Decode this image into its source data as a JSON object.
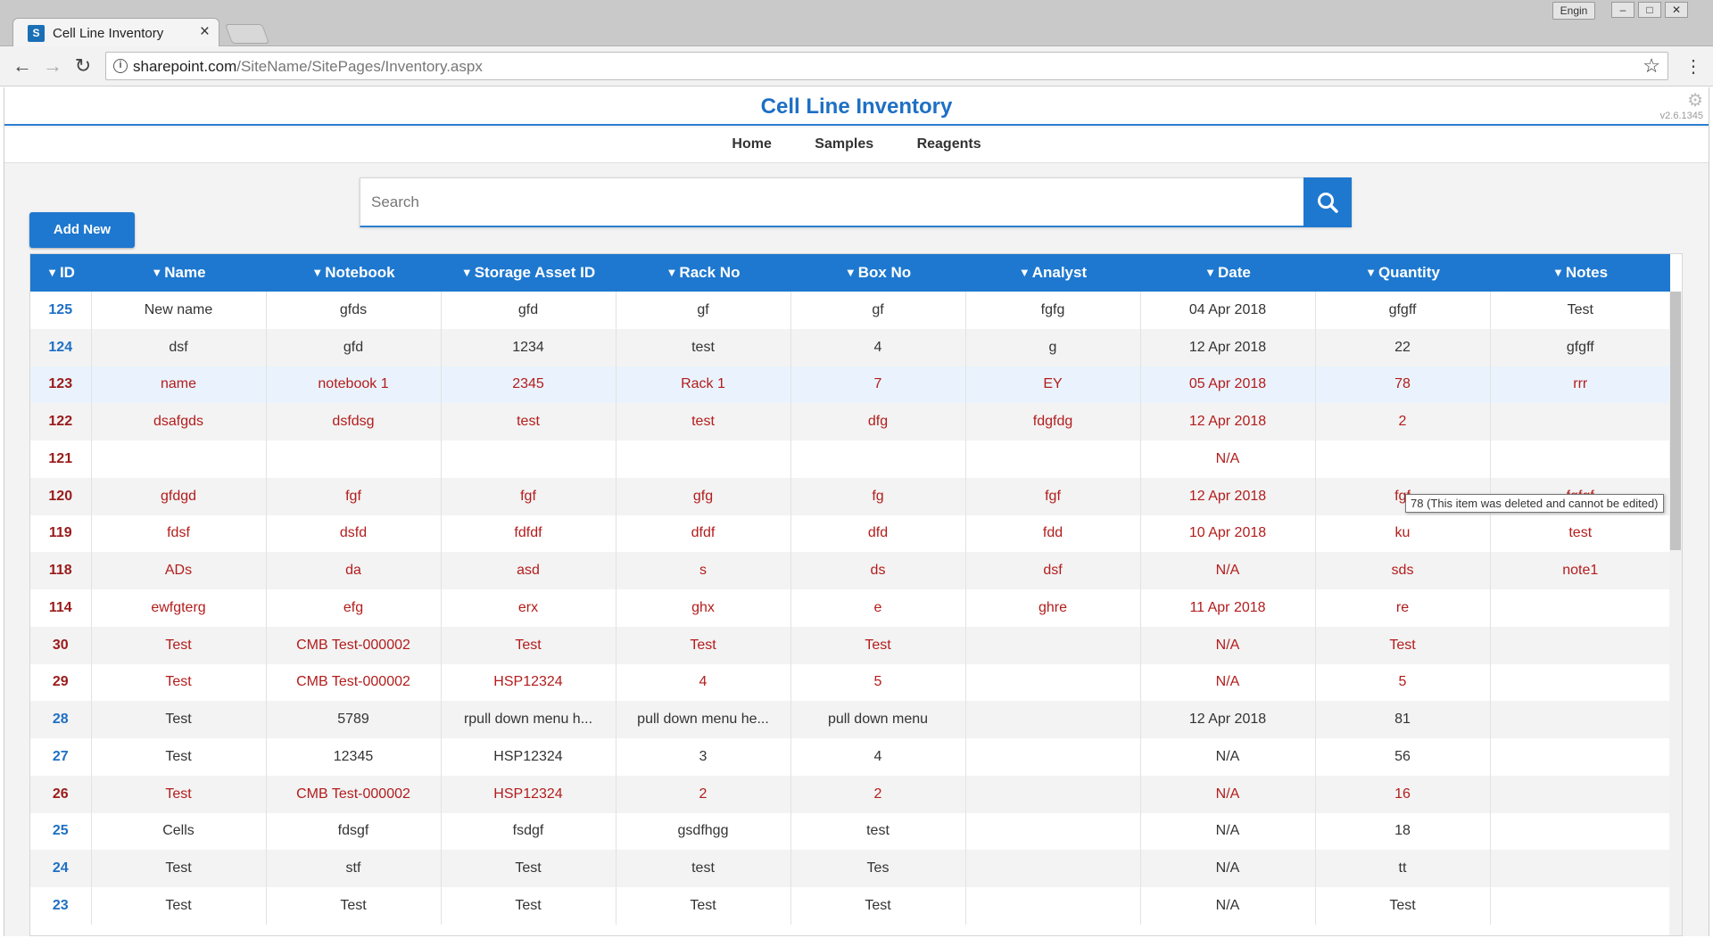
{
  "browser": {
    "tab_title": "Cell Line Inventory",
    "tab_close": "×",
    "user_badge": "Engin",
    "url_domain": "sharepoint.com",
    "url_path": "/SiteName/SitePages/Inventory.aspx"
  },
  "app": {
    "title": "Cell Line Inventory",
    "version": "v2.6.1345",
    "nav": [
      "Home",
      "Samples",
      "Reagents"
    ],
    "search_placeholder": "Search",
    "add_button": "Add New"
  },
  "table": {
    "columns": [
      "ID",
      "Name",
      "Notebook",
      "Storage Asset ID",
      "Rack No",
      "Box No",
      "Analyst",
      "Date",
      "Quantity",
      "Notes"
    ],
    "rows": [
      {
        "id": "125",
        "deleted": false,
        "cells": [
          "New name",
          "gfds",
          "gfd",
          "gf",
          "gf",
          "fgfg",
          "04 Apr 2018",
          "gfgff",
          "Test"
        ]
      },
      {
        "id": "124",
        "deleted": false,
        "cells": [
          "dsf",
          "gfd",
          "1234",
          "test",
          "4",
          "g",
          "12 Apr 2018",
          "22",
          "gfgff"
        ]
      },
      {
        "id": "123",
        "deleted": true,
        "cells": [
          "name",
          "notebook 1",
          "2345",
          "Rack 1",
          "7",
          "EY",
          "05 Apr 2018",
          "78",
          "rrr"
        ]
      },
      {
        "id": "122",
        "deleted": true,
        "cells": [
          "dsafgds",
          "dsfdsg",
          "test",
          "test",
          "dfg",
          "fdgfdg",
          "12 Apr 2018",
          "2",
          ""
        ]
      },
      {
        "id": "121",
        "deleted": true,
        "cells": [
          "",
          "",
          "",
          "",
          "",
          "",
          "N/A",
          "",
          ""
        ]
      },
      {
        "id": "120",
        "deleted": true,
        "cells": [
          "gfdgd",
          "fgf",
          "fgf",
          "gfg",
          "fg",
          "fgf",
          "12 Apr 2018",
          "fgf",
          "fgfgf"
        ]
      },
      {
        "id": "119",
        "deleted": true,
        "cells": [
          "fdsf",
          "dsfd",
          "fdfdf",
          "dfdf",
          "dfd",
          "fdd",
          "10 Apr 2018",
          "ku",
          "test"
        ]
      },
      {
        "id": "118",
        "deleted": true,
        "cells": [
          "ADs",
          "da",
          "asd",
          "s",
          "ds",
          "dsf",
          "N/A",
          "sds",
          "note1"
        ]
      },
      {
        "id": "114",
        "deleted": true,
        "cells": [
          "ewfgterg",
          "efg",
          "erx",
          "ghx",
          "e",
          "ghre",
          "11 Apr 2018",
          "re",
          ""
        ]
      },
      {
        "id": "30",
        "deleted": true,
        "cells": [
          "Test",
          "CMB Test-000002",
          "Test",
          "Test",
          "Test",
          "",
          "N/A",
          "Test",
          ""
        ]
      },
      {
        "id": "29",
        "deleted": true,
        "cells": [
          "Test",
          "CMB Test-000002",
          "HSP12324",
          "4",
          "5",
          "",
          "N/A",
          "5",
          ""
        ]
      },
      {
        "id": "28",
        "deleted": false,
        "cells": [
          "Test",
          "5789",
          "rpull down menu h...",
          "pull down menu he...",
          "pull down menu",
          "",
          "12 Apr 2018",
          "81",
          ""
        ]
      },
      {
        "id": "27",
        "deleted": false,
        "cells": [
          "Test",
          "12345",
          "HSP12324",
          "3",
          "4",
          "",
          "N/A",
          "56",
          ""
        ]
      },
      {
        "id": "26",
        "deleted": true,
        "cells": [
          "Test",
          "CMB Test-000002",
          "HSP12324",
          "2",
          "2",
          "",
          "N/A",
          "16",
          ""
        ]
      },
      {
        "id": "25",
        "deleted": false,
        "cells": [
          "Cells",
          "fdsgf",
          "fsdgf",
          "gsdfhgg",
          "test",
          "",
          "N/A",
          "18",
          ""
        ]
      },
      {
        "id": "24",
        "deleted": false,
        "cells": [
          "Test",
          "stf",
          "Test",
          "test",
          "Tes",
          "",
          "N/A",
          "tt",
          ""
        ]
      },
      {
        "id": "23",
        "deleted": false,
        "cells": [
          "Test",
          "Test",
          "Test",
          "Test",
          "Test",
          "",
          "N/A",
          "Test",
          ""
        ]
      }
    ]
  },
  "tooltip": "78 (This item was deleted and cannot be edited)",
  "colors": {
    "accent": "#1e78cf",
    "title": "#1e6fc4",
    "deleted_text": "#b31c1c"
  }
}
